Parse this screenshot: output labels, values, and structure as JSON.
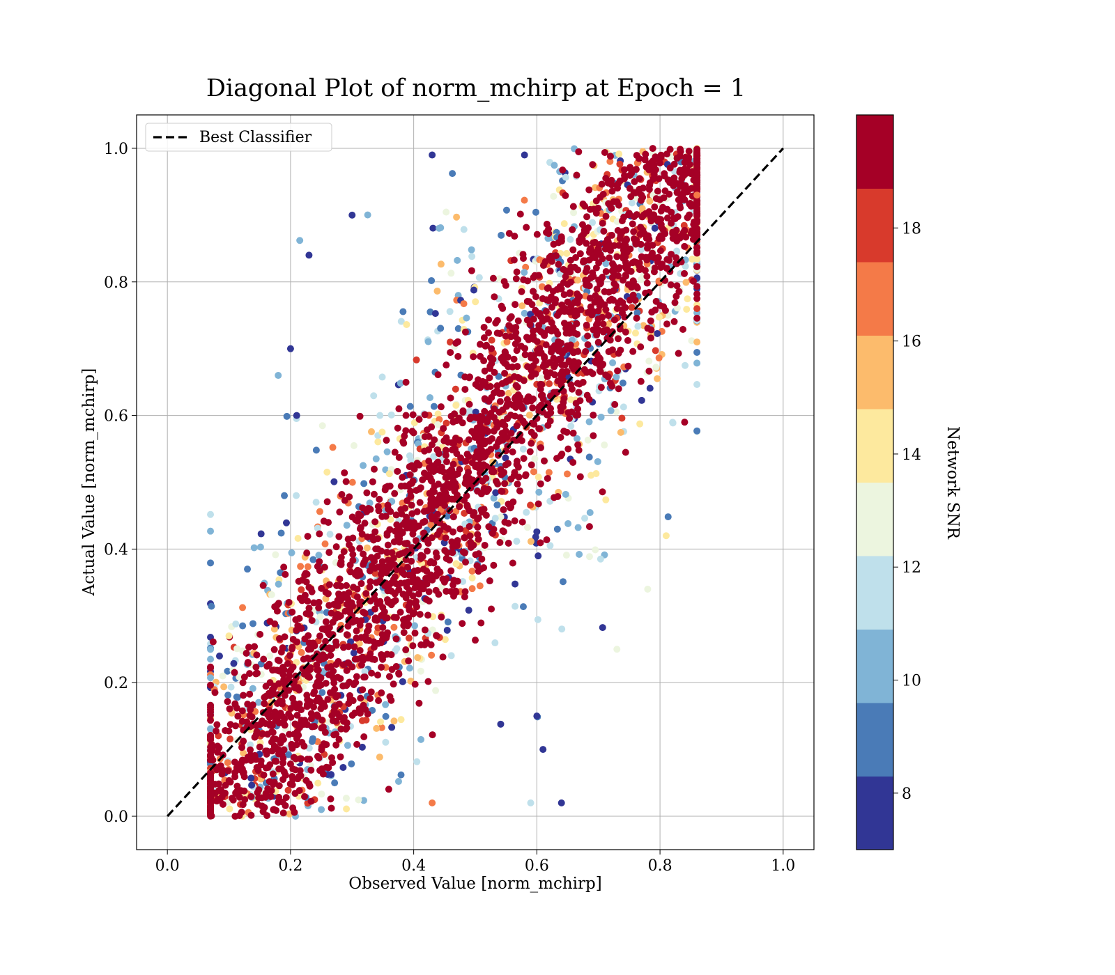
{
  "chart_data": {
    "type": "scatter",
    "title": "Diagonal Plot of norm_mchirp at Epoch = 1",
    "xlabel": "Observed Value [norm_mchirp]",
    "ylabel": "Actual Value [norm_mchirp]",
    "xlim": [
      -0.05,
      1.05
    ],
    "ylim": [
      -0.05,
      1.05
    ],
    "xticks": [
      "0.0",
      "0.2",
      "0.4",
      "0.6",
      "0.8",
      "1.0"
    ],
    "yticks": [
      "0.0",
      "0.2",
      "0.4",
      "0.6",
      "0.8",
      "1.0"
    ],
    "grid": true,
    "legend": {
      "placement": "top-left",
      "entries": [
        "Best Classifier"
      ]
    },
    "reference_line": {
      "name": "Best Classifier",
      "style": "dashed",
      "color": "#000000",
      "x": [
        0.0,
        1.0
      ],
      "y": [
        0.0,
        1.0
      ]
    },
    "color_encoding": "Network SNR",
    "colorbar": {
      "label": "Network SNR",
      "range": [
        7,
        20
      ],
      "ticks": [
        "8",
        "10",
        "12",
        "14",
        "16",
        "18"
      ],
      "bins": [
        {
          "from": 7.0,
          "to": 8.3,
          "color": "#313695"
        },
        {
          "from": 8.3,
          "to": 9.6,
          "color": "#4a7bb7"
        },
        {
          "from": 9.6,
          "to": 10.9,
          "color": "#80b4d6"
        },
        {
          "from": 10.9,
          "to": 12.2,
          "color": "#bfe0eb"
        },
        {
          "from": 12.2,
          "to": 13.5,
          "color": "#ecf5df"
        },
        {
          "from": 13.5,
          "to": 14.8,
          "color": "#fde99e"
        },
        {
          "from": 14.8,
          "to": 16.1,
          "color": "#fcbb6c"
        },
        {
          "from": 16.1,
          "to": 17.4,
          "color": "#f47a48"
        },
        {
          "from": 17.4,
          "to": 18.7,
          "color": "#d83a2c"
        },
        {
          "from": 18.7,
          "to": 20.0,
          "color": "#a50026"
        }
      ]
    },
    "sample_points": [
      {
        "x": 0.43,
        "y": 0.99,
        "snr": 7.5
      },
      {
        "x": 0.58,
        "y": 0.99,
        "snr": 7.8
      },
      {
        "x": 0.23,
        "y": 0.84,
        "snr": 7.5
      },
      {
        "x": 0.3,
        "y": 0.9,
        "snr": 7.9
      },
      {
        "x": 0.2,
        "y": 0.7,
        "snr": 7.6
      },
      {
        "x": 0.18,
        "y": 0.66,
        "snr": 10.2
      },
      {
        "x": 0.21,
        "y": 0.6,
        "snr": 7.8
      },
      {
        "x": 0.19,
        "y": 0.48,
        "snr": 8.8
      },
      {
        "x": 0.13,
        "y": 0.37,
        "snr": 9.0
      },
      {
        "x": 0.1,
        "y": 0.27,
        "snr": 14.0
      },
      {
        "x": 0.09,
        "y": 0.21,
        "snr": 13.0
      },
      {
        "x": 0.25,
        "y": 0.01,
        "snr": 10.0
      },
      {
        "x": 0.43,
        "y": 0.02,
        "snr": 17.0
      },
      {
        "x": 0.64,
        "y": 0.02,
        "snr": 7.5
      },
      {
        "x": 0.59,
        "y": 0.02,
        "snr": 11.5
      },
      {
        "x": 0.61,
        "y": 0.1,
        "snr": 7.6
      },
      {
        "x": 0.6,
        "y": 0.15,
        "snr": 8.0
      },
      {
        "x": 0.73,
        "y": 0.25,
        "snr": 13.0
      },
      {
        "x": 0.78,
        "y": 0.34,
        "snr": 13.0
      },
      {
        "x": 0.81,
        "y": 0.42,
        "snr": 14.0
      },
      {
        "x": 0.84,
        "y": 0.59,
        "snr": 19.0
      },
      {
        "x": 0.86,
        "y": 0.71,
        "snr": 15.5
      },
      {
        "x": 0.86,
        "y": 0.76,
        "snr": 18.5
      },
      {
        "x": 0.86,
        "y": 0.93,
        "snr": 17.0
      },
      {
        "x": 0.11,
        "y": 0.0,
        "snr": 19.5
      },
      {
        "x": 0.5,
        "y": 0.5,
        "snr": 19.8
      },
      {
        "x": 0.7,
        "y": 0.85,
        "snr": 19.8
      },
      {
        "x": 0.3,
        "y": 0.3,
        "snr": 19.8
      }
    ]
  }
}
